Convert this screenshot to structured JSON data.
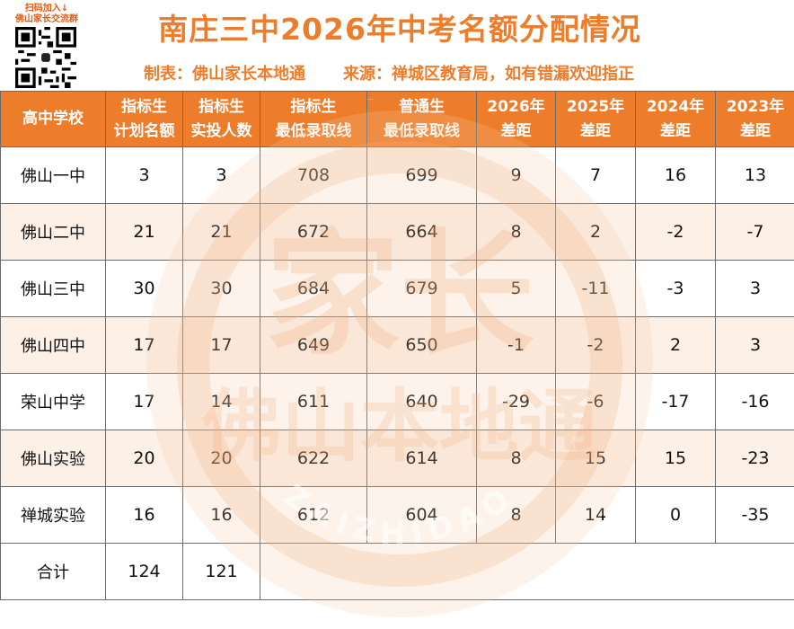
{
  "qr_caption": [
    "扫码加入↓",
    "佛山家长交流群"
  ],
  "title": "南庄三中2026年中考名额分配情况",
  "subtitle_maker": "制表：佛山家长本地通",
  "subtitle_source": "来源：禅城区教育局，如有错漏欢迎指正",
  "watermark": {
    "big": "家长",
    "ring": "佛山本地通",
    "arc_top": "ZAIZHIDAO",
    "arc_bottom": "ZAIZHIDAO"
  },
  "table": {
    "headers": [
      [
        "高中学校",
        ""
      ],
      [
        "指标生",
        "计划名额"
      ],
      [
        "指标生",
        "实投人数"
      ],
      [
        "指标生",
        "最低录取线"
      ],
      [
        "普通生",
        "最低录取线"
      ],
      [
        "2026年",
        "差距"
      ],
      [
        "2025年",
        "差距"
      ],
      [
        "2024年",
        "差距"
      ],
      [
        "2023年",
        "差距"
      ]
    ],
    "rows": [
      [
        "佛山一中",
        "3",
        "3",
        "708",
        "699",
        "9",
        "7",
        "16",
        "13"
      ],
      [
        "佛山二中",
        "21",
        "21",
        "672",
        "664",
        "8",
        "2",
        "-2",
        "-7"
      ],
      [
        "佛山三中",
        "30",
        "30",
        "684",
        "679",
        "5",
        "-11",
        "-3",
        "3"
      ],
      [
        "佛山四中",
        "17",
        "17",
        "649",
        "650",
        "-1",
        "-2",
        "2",
        "3"
      ],
      [
        "荣山中学",
        "17",
        "14",
        "611",
        "640",
        "-29",
        "-6",
        "-17",
        "-16"
      ],
      [
        "佛山实验",
        "20",
        "20",
        "622",
        "614",
        "8",
        "15",
        "15",
        "-23"
      ],
      [
        "禅城实验",
        "16",
        "16",
        "612",
        "604",
        "8",
        "14",
        "0",
        "-35"
      ]
    ],
    "total": [
      "合计",
      "124",
      "121"
    ]
  },
  "colors": {
    "header_bg": "#ee7d2b",
    "title": "#ee7d2b",
    "stripe": "#fae4d4",
    "watermark": "#f2b07e"
  }
}
